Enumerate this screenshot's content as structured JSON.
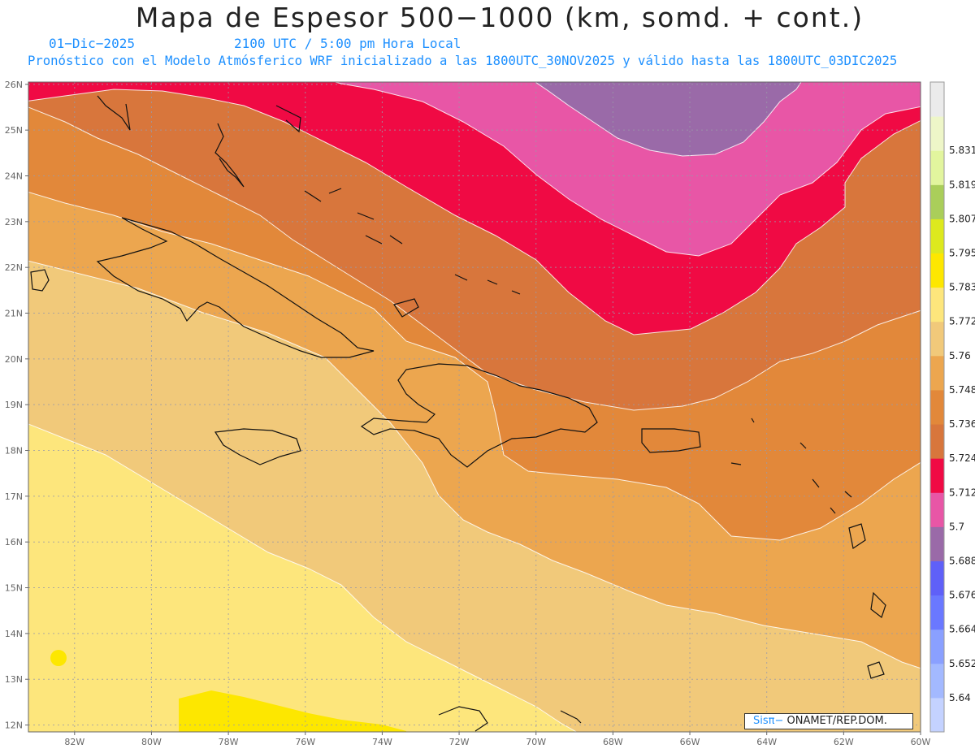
{
  "header": {
    "title": "Mapa de Espesor 500−1000 (km, somd. + cont.)",
    "date": "01−Dic−2025",
    "time": "2100 UTC / 5:00 pm Hora Local",
    "model_line": "Pronóstico con el Modelo Atmósferico WRF inicializado a las 1800UTC_30NOV2025 y válido hasta las  1800UTC_03DIC2025"
  },
  "map": {
    "lat_labels": [
      "12N",
      "13N",
      "14N",
      "15N",
      "16N",
      "17N",
      "18N",
      "19N",
      "20N",
      "21N",
      "22N",
      "23N",
      "24N",
      "25N",
      "26N"
    ],
    "lon_labels": [
      "82W",
      "80W",
      "78W",
      "76W",
      "74W",
      "72W",
      "70W",
      "68W",
      "66W",
      "64W",
      "62W",
      "60W"
    ],
    "lon_range": [
      -83.2,
      -60
    ],
    "lat_range": [
      11.85,
      26.05
    ]
  },
  "colorbar": {
    "labels": [
      "5.64",
      "5.652",
      "5.664",
      "5.676",
      "5.688",
      "5.7",
      "5.712",
      "5.724",
      "5.736",
      "5.748",
      "5.76",
      "5.772",
      "5.783",
      "5.795",
      "5.807",
      "5.819",
      "5.831"
    ],
    "colors": [
      "#c4d2ff",
      "#a3b9ff",
      "#8aa0ff",
      "#6a78ff",
      "#5f60f8",
      "#9a6aa8",
      "#e856a6",
      "#f00a44",
      "#d8763c",
      "#e2883a",
      "#eca64f",
      "#f1c97a",
      "#fde67c",
      "#fde700",
      "#dde91e",
      "#aace5a",
      "#e2f59e",
      "#eef6c8",
      "#ebebeb"
    ]
  },
  "credit": {
    "brand": "Sisπ−",
    "org": " ONAMET/REP.DOM."
  }
}
